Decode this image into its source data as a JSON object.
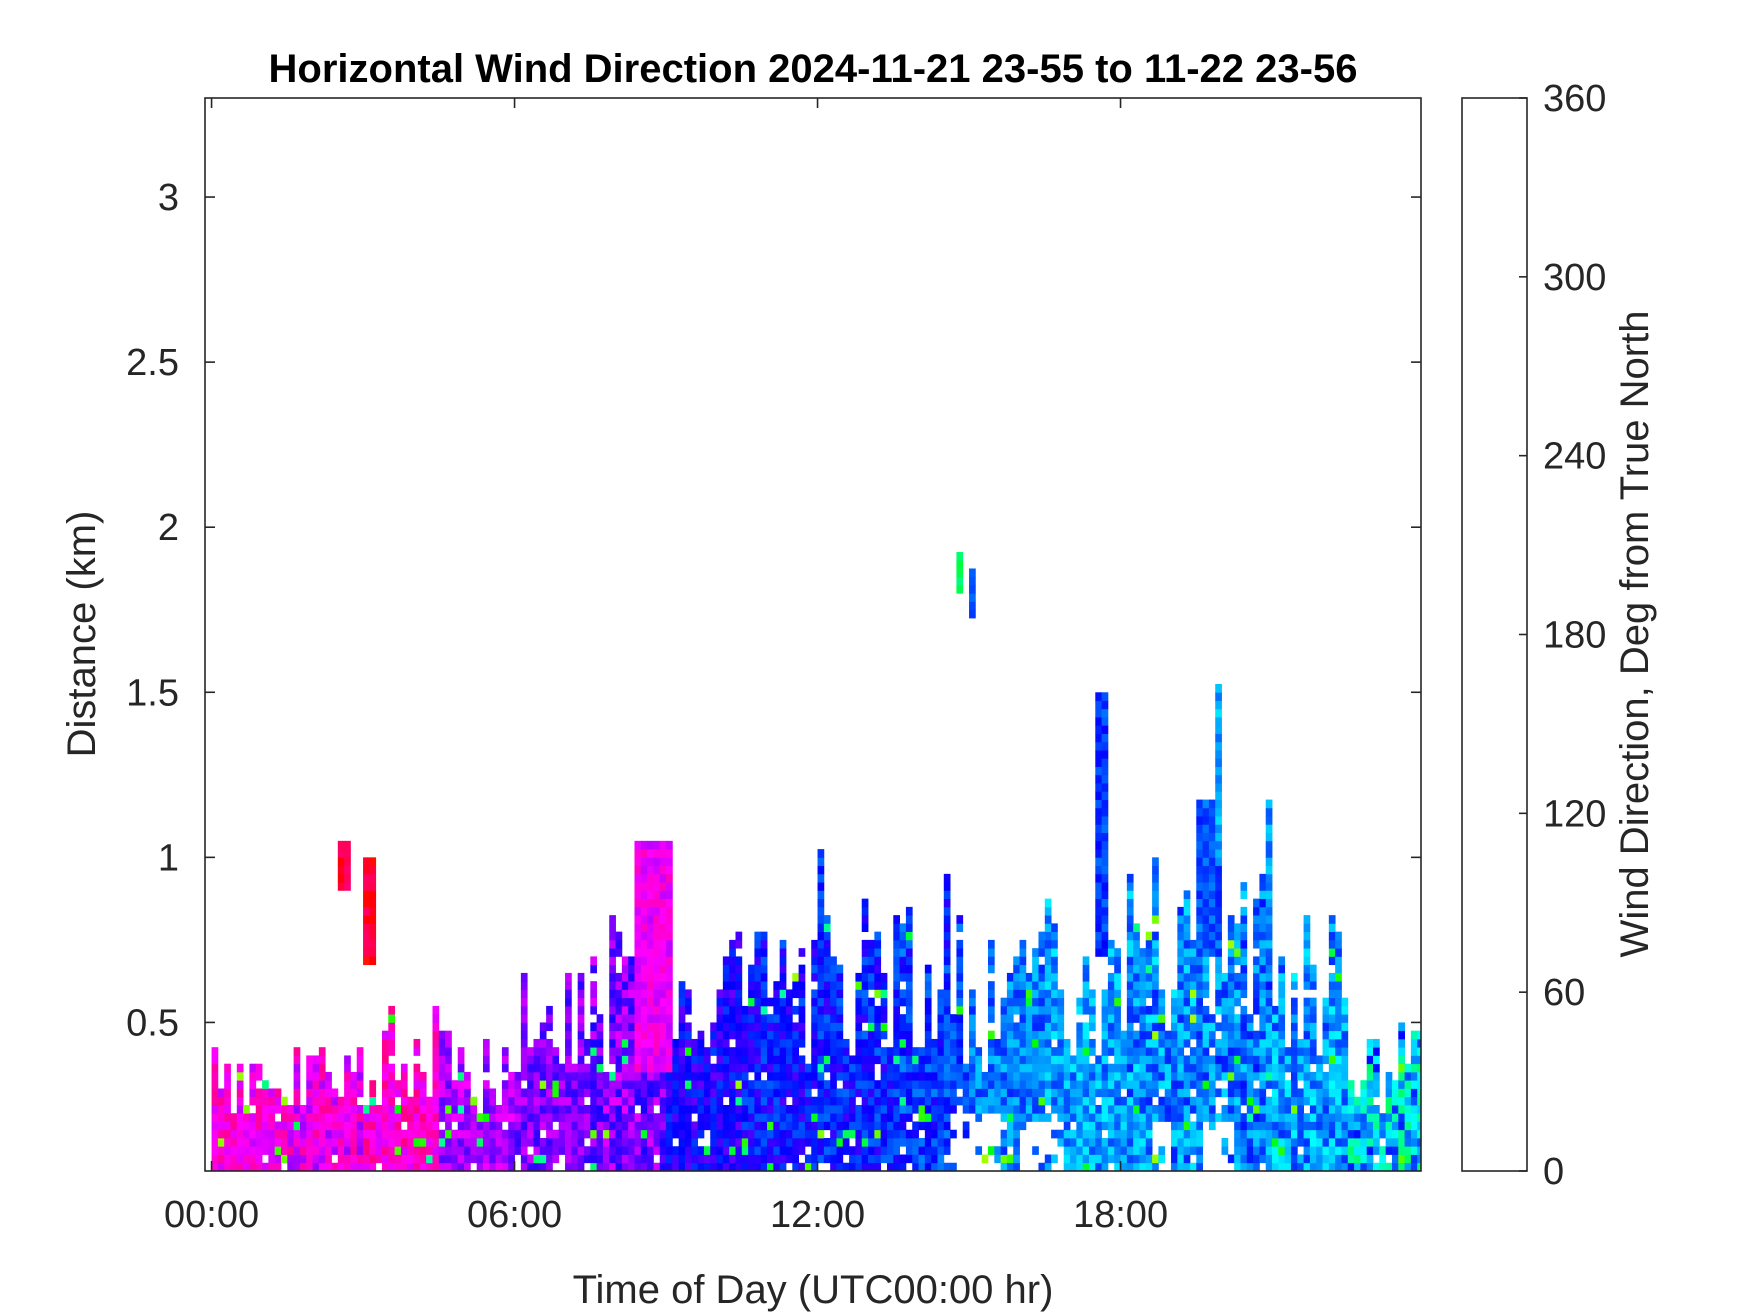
{
  "chart_data": {
    "type": "heatmap",
    "title": "Horizontal Wind Direction 2024-11-21 23-55 to 11-22 23-56",
    "xlabel": "Time of Day (UTC00:00 hr)",
    "ylabel": "Distance (km)",
    "colorbar_label": "Wind Direction, Deg from True North",
    "x_unit": "hours",
    "xlim": [
      -0.13,
      23.95
    ],
    "ylim": [
      0.05,
      3.3
    ],
    "x_ticks": [
      0,
      6,
      12,
      18
    ],
    "x_tick_labels": [
      "00:00",
      "06:00",
      "12:00",
      "18:00"
    ],
    "y_ticks": [
      0.5,
      1,
      1.5,
      2,
      2.5,
      3
    ],
    "y_tick_labels": [
      "0.5",
      "1",
      "1.5",
      "2",
      "2.5",
      "3"
    ],
    "clim": [
      0,
      360
    ],
    "colorbar_ticks": [
      0,
      60,
      120,
      180,
      240,
      300,
      360
    ],
    "colorbar_tick_labels": [
      "0",
      "60",
      "120",
      "180",
      "240",
      "300",
      "360"
    ],
    "colormap": "hsv",
    "grid": false,
    "time_step_hours": 0.125,
    "range_gate_km": 0.025,
    "profiles": [
      {
        "t_start": 0.0,
        "t_end": 1.5,
        "top_km": 0.33,
        "direction_deg": 305,
        "spread_deg": 20
      },
      {
        "t_start": 1.5,
        "t_end": 3.0,
        "top_km": 0.35,
        "direction_deg": 300,
        "spread_deg": 25
      },
      {
        "t_start": 3.0,
        "t_end": 4.5,
        "top_km": 0.42,
        "direction_deg": 310,
        "spread_deg": 20
      },
      {
        "t_start": 4.5,
        "t_end": 6.0,
        "top_km": 0.37,
        "direction_deg": 280,
        "spread_deg": 20
      },
      {
        "t_start": 6.0,
        "t_end": 7.5,
        "top_km": 0.5,
        "direction_deg": 270,
        "spread_deg": 20
      },
      {
        "t_start": 7.5,
        "t_end": 9.0,
        "top_km": 0.62,
        "direction_deg": 270,
        "spread_deg": 25
      },
      {
        "t_start": 9.0,
        "t_end": 10.5,
        "top_km": 0.6,
        "direction_deg": 245,
        "spread_deg": 20
      },
      {
        "t_start": 10.5,
        "t_end": 12.0,
        "top_km": 0.66,
        "direction_deg": 238,
        "spread_deg": 20
      },
      {
        "t_start": 12.0,
        "t_end": 13.5,
        "top_km": 0.7,
        "direction_deg": 235,
        "spread_deg": 20
      },
      {
        "t_start": 13.5,
        "t_end": 15.0,
        "top_km": 0.66,
        "direction_deg": 228,
        "spread_deg": 20
      },
      {
        "t_start": 15.0,
        "t_end": 16.5,
        "top_km": 0.6,
        "direction_deg": 212,
        "spread_deg": 20
      },
      {
        "t_start": 16.5,
        "t_end": 18.0,
        "top_km": 0.68,
        "direction_deg": 205,
        "spread_deg": 22
      },
      {
        "t_start": 18.0,
        "t_end": 19.5,
        "top_km": 0.82,
        "direction_deg": 208,
        "spread_deg": 25
      },
      {
        "t_start": 19.5,
        "t_end": 21.0,
        "top_km": 0.9,
        "direction_deg": 212,
        "spread_deg": 25
      },
      {
        "t_start": 21.0,
        "t_end": 22.5,
        "top_km": 0.65,
        "direction_deg": 205,
        "spread_deg": 25
      },
      {
        "t_start": 22.5,
        "t_end": 23.95,
        "top_km": 0.38,
        "direction_deg": 190,
        "spread_deg": 50
      }
    ],
    "features": [
      {
        "t_start": 2.5,
        "t_end": 2.65,
        "y_min": 0.9,
        "y_max": 1.05,
        "direction_deg": 345
      },
      {
        "t_start": 3.0,
        "t_end": 3.15,
        "y_min": 0.66,
        "y_max": 1.0,
        "direction_deg": 350
      },
      {
        "t_start": 8.3,
        "t_end": 9.1,
        "y_min": 0.35,
        "y_max": 1.05,
        "direction_deg": 300
      },
      {
        "t_start": 14.7,
        "t_end": 14.85,
        "y_min": 1.78,
        "y_max": 1.9,
        "direction_deg": 140
      },
      {
        "t_start": 14.95,
        "t_end": 15.1,
        "y_min": 1.72,
        "y_max": 1.87,
        "direction_deg": 215
      },
      {
        "t_start": 17.5,
        "t_end": 17.65,
        "y_min": 0.7,
        "y_max": 1.48,
        "direction_deg": 228
      },
      {
        "t_start": 19.85,
        "t_end": 20.0,
        "y_min": 1.0,
        "y_max": 1.51,
        "direction_deg": 200
      },
      {
        "t_start": 19.45,
        "t_end": 19.9,
        "y_min": 0.7,
        "y_max": 1.15,
        "direction_deg": 220
      },
      {
        "t_start": 20.8,
        "t_end": 21.0,
        "y_min": 0.7,
        "y_max": 1.15,
        "direction_deg": 205
      },
      {
        "t_start": 12.0,
        "t_end": 12.1,
        "y_min": 0.7,
        "y_max": 1.02,
        "direction_deg": 230
      },
      {
        "t_start": 14.5,
        "t_end": 14.6,
        "y_min": 0.68,
        "y_max": 0.94,
        "direction_deg": 235
      }
    ],
    "gaps": [
      {
        "t_start": 14.6,
        "t_end": 15.6,
        "y_min": 0.05,
        "y_max": 0.22
      },
      {
        "t_start": 16.0,
        "t_end": 16.8,
        "y_min": 0.05,
        "y_max": 0.18
      },
      {
        "t_start": 18.6,
        "t_end": 18.9,
        "y_min": 0.05,
        "y_max": 0.22
      },
      {
        "t_start": 19.6,
        "t_end": 20.2,
        "y_min": 0.05,
        "y_max": 0.22
      },
      {
        "t_start": 6.8,
        "t_end": 7.0,
        "y_min": 0.05,
        "y_max": 0.12
      }
    ]
  }
}
